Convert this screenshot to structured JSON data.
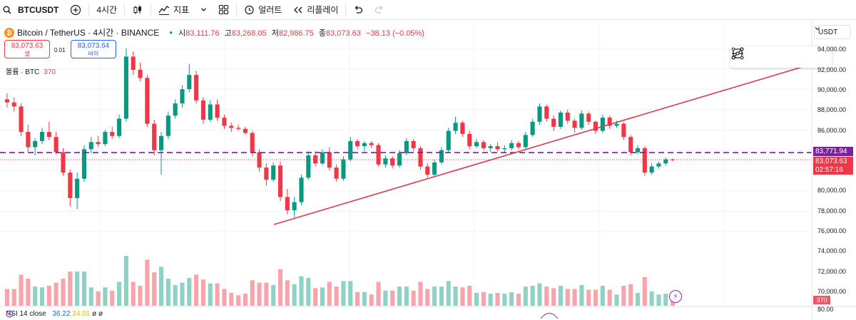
{
  "toolbar": {
    "symbol": "BTCUSDT",
    "interval": "4시간",
    "indicators_label": "지표",
    "alert_label": "얼러트",
    "replay_label": "리플레이"
  },
  "legend": {
    "title": "Bitcoin / TetherUS · 4시간 · BINANCE",
    "open_label": "시",
    "open": "83,111.76",
    "high_label": "고",
    "high": "83,268.05",
    "low_label": "저",
    "low": "82,986.75",
    "close_label": "종",
    "close": "83,073.63",
    "change": "−38.13 (−0.05%)"
  },
  "trade": {
    "sell_price": "83,073.63",
    "sell_label": "셀",
    "spread": "0.01",
    "buy_price": "83,073.64",
    "buy_label": "바이"
  },
  "volume_legend": {
    "label": "볼륨 · BTC",
    "value": "370"
  },
  "currency": "USDT",
  "price_axis": [
    "94,000.00",
    "92,000.00",
    "90,000.00",
    "88,000.00",
    "86,000.00",
    "80,000.00",
    "78,000.00",
    "76,000.00",
    "74,000.00",
    "72,000.00",
    "70,000.00",
    "80.00"
  ],
  "price_tags": {
    "dashed_level": "83,771.94",
    "last_price": "83,073.63",
    "countdown": "02:57:16",
    "volume": "370"
  },
  "rsi": {
    "label": "RSI 14 close",
    "value1": "36.22",
    "value2": "34.01",
    "extra": "ø"
  },
  "colors": {
    "up": "#089981",
    "down": "#f23645",
    "trendline": "#e0394a",
    "dashed": "#7b1fa2"
  },
  "chart_data": {
    "type": "candlestick",
    "price_ylim": [
      76000,
      94000
    ],
    "dashed_level": 83771.94,
    "last_price": 83073.63,
    "trendline": [
      [
        0.32,
        76700
      ],
      [
        0.95,
        92500
      ]
    ],
    "candles": [
      [
        89000,
        89600,
        88200,
        88700
      ],
      [
        88700,
        89200,
        87800,
        88300
      ],
      [
        88300,
        88600,
        85400,
        85800
      ],
      [
        85800,
        86500,
        83800,
        84300
      ],
      [
        84300,
        85200,
        83500,
        84900
      ],
      [
        84900,
        86200,
        84600,
        85800
      ],
      [
        85800,
        86800,
        85000,
        85300
      ],
      [
        85300,
        85800,
        83600,
        83800
      ],
      [
        83800,
        84200,
        81500,
        81800
      ],
      [
        81800,
        82100,
        78500,
        79300
      ],
      [
        79300,
        81800,
        78200,
        81200
      ],
      [
        81200,
        84500,
        80900,
        84100
      ],
      [
        84100,
        85300,
        83700,
        84800
      ],
      [
        84800,
        85400,
        84300,
        84600
      ],
      [
        84600,
        86000,
        84400,
        85800
      ],
      [
        85800,
        86300,
        85100,
        85400
      ],
      [
        85400,
        87500,
        85200,
        87100
      ],
      [
        87100,
        94000,
        86800,
        93200
      ],
      [
        93200,
        93700,
        91400,
        91900
      ],
      [
        91900,
        92600,
        90800,
        91100
      ],
      [
        91100,
        91400,
        86300,
        86600
      ],
      [
        86600,
        87000,
        83500,
        84000
      ],
      [
        84000,
        85800,
        81600,
        85400
      ],
      [
        85400,
        87800,
        85100,
        87400
      ],
      [
        87400,
        89000,
        87100,
        88600
      ],
      [
        88600,
        90400,
        88200,
        90000
      ],
      [
        90000,
        92500,
        89700,
        91400
      ],
      [
        91400,
        91800,
        88600,
        88900
      ],
      [
        88900,
        89200,
        86600,
        87000
      ],
      [
        87000,
        88900,
        86800,
        88500
      ],
      [
        88500,
        89000,
        86900,
        87200
      ],
      [
        87200,
        87500,
        86100,
        86400
      ],
      [
        86400,
        86700,
        85800,
        86200
      ],
      [
        86200,
        86500,
        85900,
        86100
      ],
      [
        86100,
        86300,
        85500,
        85700
      ],
      [
        85700,
        85900,
        83400,
        83800
      ],
      [
        83800,
        84100,
        81900,
        82300
      ],
      [
        82300,
        82700,
        80500,
        81100
      ],
      [
        81100,
        82800,
        80900,
        82500
      ],
      [
        82500,
        82900,
        79000,
        79400
      ],
      [
        79400,
        80200,
        77700,
        78100
      ],
      [
        78100,
        79400,
        77400,
        78900
      ],
      [
        78900,
        81600,
        78600,
        81300
      ],
      [
        81300,
        83900,
        81100,
        83500
      ],
      [
        83500,
        83900,
        82400,
        82700
      ],
      [
        82700,
        84100,
        82500,
        83800
      ],
      [
        83800,
        84300,
        82000,
        82300
      ],
      [
        82300,
        82600,
        80900,
        81200
      ],
      [
        81200,
        83400,
        81000,
        83100
      ],
      [
        83100,
        85300,
        82900,
        84900
      ],
      [
        84900,
        85100,
        84100,
        84400
      ],
      [
        84400,
        84900,
        83900,
        84700
      ],
      [
        84700,
        84900,
        84200,
        84500
      ],
      [
        84500,
        84700,
        82400,
        82600
      ],
      [
        82600,
        83500,
        82300,
        83200
      ],
      [
        83200,
        83400,
        82200,
        82500
      ],
      [
        82500,
        84000,
        82300,
        83700
      ],
      [
        83700,
        85200,
        83500,
        84900
      ],
      [
        84900,
        85100,
        83900,
        84200
      ],
      [
        84200,
        84400,
        82100,
        82400
      ],
      [
        82400,
        82700,
        81300,
        81600
      ],
      [
        81600,
        83100,
        81400,
        82800
      ],
      [
        82800,
        84300,
        82600,
        84000
      ],
      [
        84000,
        86200,
        83800,
        85900
      ],
      [
        85900,
        87300,
        85600,
        86700
      ],
      [
        86700,
        86900,
        85300,
        85600
      ],
      [
        85600,
        85900,
        84100,
        84400
      ],
      [
        84400,
        85100,
        84200,
        84800
      ],
      [
        84800,
        85000,
        84000,
        84200
      ],
      [
        84200,
        84600,
        83800,
        84400
      ],
      [
        84400,
        84800,
        83900,
        84100
      ],
      [
        84100,
        84500,
        83700,
        84200
      ],
      [
        84200,
        85000,
        84000,
        84700
      ],
      [
        84700,
        84900,
        84100,
        84300
      ],
      [
        84300,
        85800,
        84100,
        85500
      ],
      [
        85500,
        87100,
        85300,
        86800
      ],
      [
        86800,
        88600,
        86500,
        88300
      ],
      [
        88300,
        88500,
        86800,
        87100
      ],
      [
        87100,
        87400,
        85900,
        86300
      ],
      [
        86300,
        87900,
        86100,
        87700
      ],
      [
        87700,
        88000,
        86600,
        86900
      ],
      [
        86900,
        87100,
        85700,
        86200
      ],
      [
        86200,
        87900,
        86000,
        87600
      ],
      [
        87600,
        87800,
        86500,
        86800
      ],
      [
        86800,
        86900,
        85600,
        85900
      ],
      [
        85900,
        87500,
        85700,
        87200
      ],
      [
        87200,
        87400,
        86100,
        86400
      ],
      [
        86400,
        86900,
        86200,
        86600
      ],
      [
        86600,
        86800,
        85000,
        85300
      ],
      [
        85300,
        85500,
        83500,
        83800
      ],
      [
        83800,
        84500,
        83600,
        84200
      ],
      [
        84200,
        84400,
        81500,
        81800
      ],
      [
        81800,
        82700,
        81600,
        82400
      ],
      [
        82400,
        82900,
        82200,
        82700
      ],
      [
        82700,
        83300,
        82500,
        83100
      ],
      [
        83100,
        83200,
        82900,
        83073.63
      ]
    ]
  }
}
